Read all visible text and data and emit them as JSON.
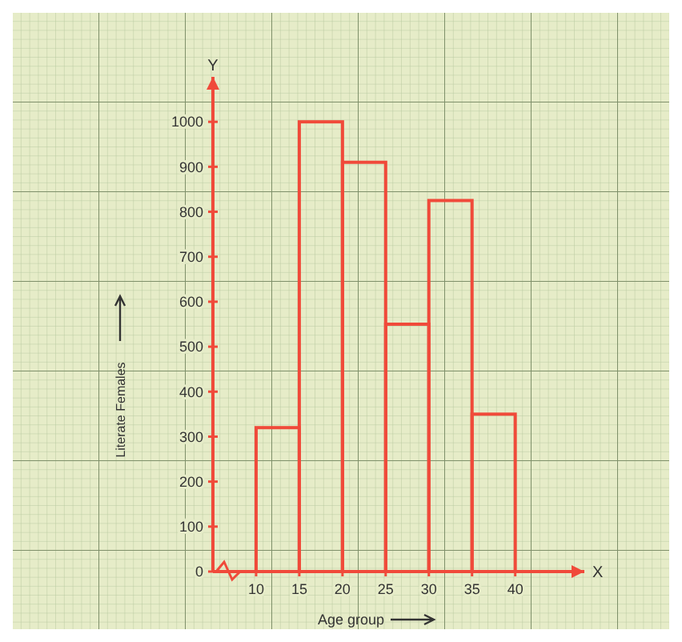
{
  "chart_data": {
    "type": "histogram",
    "xlabel": "Age group",
    "ylabel": "Literate Females",
    "bins": [
      10,
      15,
      20,
      25,
      30,
      35,
      40
    ],
    "values": [
      320,
      1000,
      910,
      550,
      825,
      350
    ],
    "color": "#f04a3a",
    "xlim": [
      5,
      48
    ],
    "xticks": [
      10,
      15,
      20,
      25,
      30,
      35,
      40
    ],
    "ylim": [
      0,
      1100
    ],
    "yticks": [
      0,
      100,
      200,
      300,
      400,
      500,
      600,
      700,
      800,
      900,
      1000
    ],
    "annotations": [
      "Y",
      "X"
    ],
    "grid": false
  }
}
